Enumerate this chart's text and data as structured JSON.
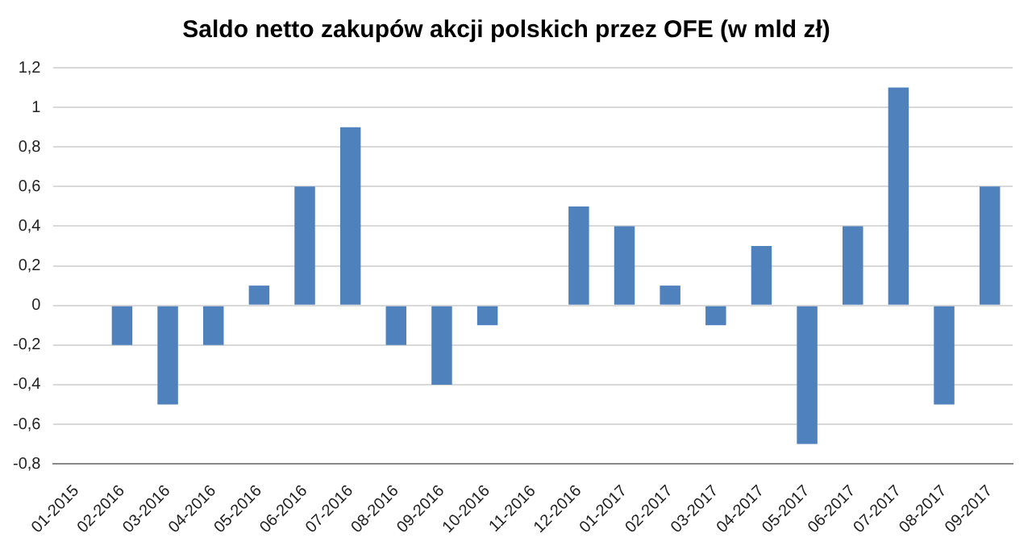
{
  "chart_data": {
    "type": "bar",
    "title": "Saldo netto zakupów akcji polskich przez OFE (w mld zł)",
    "categories": [
      "01-2015",
      "02-2016",
      "03-2016",
      "04-2016",
      "05-2016",
      "06-2016",
      "07-2016",
      "08-2016",
      "09-2016",
      "10-2016",
      "11-2016",
      "12-2016",
      "01-2017",
      "02-2017",
      "03-2017",
      "04-2017",
      "05-2017",
      "06-2017",
      "07-2017",
      "08-2017",
      "09-2017"
    ],
    "values": [
      0,
      -0.2,
      -0.5,
      -0.2,
      0.1,
      0.6,
      0.9,
      -0.2,
      -0.4,
      -0.1,
      0,
      0.5,
      0.4,
      0.1,
      -0.1,
      0.3,
      -0.7,
      0.4,
      1.1,
      -0.5,
      0.6
    ],
    "color": "#4f81bd",
    "ylim": [
      -0.8,
      1.2
    ],
    "yticks": [
      {
        "value": -0.8,
        "label": "-0,8"
      },
      {
        "value": -0.6,
        "label": "-0,6"
      },
      {
        "value": -0.4,
        "label": "-0,4"
      },
      {
        "value": -0.2,
        "label": "-0,2"
      },
      0,
      {
        "value": 0.2,
        "label": "0,2"
      },
      {
        "value": 0.4,
        "label": "0,4"
      },
      {
        "value": 0.6,
        "label": "0,6"
      },
      {
        "value": 0.8,
        "label": "0,8"
      },
      1,
      {
        "value": 1.2,
        "label": "1,2"
      }
    ],
    "grid": "y"
  }
}
